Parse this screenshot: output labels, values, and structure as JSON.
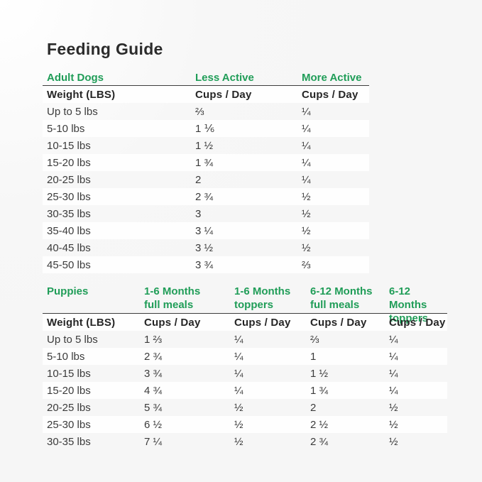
{
  "title": "Feeding Guide",
  "colors": {
    "accent_green": "#209d58",
    "page_bg": "#f6f6f6",
    "stripe_white": "#fefefe",
    "text_dark": "#3b3b3b"
  },
  "adult_dogs": {
    "section_label": "Adult Dogs",
    "activity_headers": [
      "Less Active",
      "More Active"
    ],
    "weight_header": "Weight (LBS)",
    "unit_label": "Cups / Day",
    "rows": [
      {
        "weight": "Up to 5 lbs",
        "values": [
          "⅔",
          "¼"
        ]
      },
      {
        "weight": "5-10 lbs",
        "values": [
          "1 ⅙",
          "¼"
        ]
      },
      {
        "weight": "10-15 lbs",
        "values": [
          "1 ½",
          "¼"
        ]
      },
      {
        "weight": "15-20 lbs",
        "values": [
          "1 ¾",
          "¼"
        ]
      },
      {
        "weight": "20-25 lbs",
        "values": [
          "2",
          "¼"
        ]
      },
      {
        "weight": "25-30 lbs",
        "values": [
          "2 ¾",
          "½"
        ]
      },
      {
        "weight": "30-35 lbs",
        "values": [
          "3",
          "½"
        ]
      },
      {
        "weight": "35-40 lbs",
        "values": [
          "3 ¼",
          "½"
        ]
      },
      {
        "weight": "40-45 lbs",
        "values": [
          "3 ½",
          "½"
        ]
      },
      {
        "weight": "45-50 lbs",
        "values": [
          "3 ¾",
          "⅔"
        ]
      }
    ]
  },
  "puppies": {
    "section_label": "Puppies",
    "age_headers": [
      "1-6 Months\nfull meals",
      "1-6 Months\ntoppers",
      "6-12 Months\nfull meals",
      "6-12 Months\ntoppers"
    ],
    "weight_header": "Weight (LBS)",
    "unit_label": "Cups / Day",
    "rows": [
      {
        "weight": "Up to 5 lbs",
        "values": [
          "1 ⅔",
          "¼",
          "⅔",
          "¼"
        ]
      },
      {
        "weight": "5-10 lbs",
        "values": [
          "2 ¾",
          "¼",
          "1",
          "¼"
        ]
      },
      {
        "weight": "10-15 lbs",
        "values": [
          "3 ¾",
          "¼",
          "1 ½",
          "¼"
        ]
      },
      {
        "weight": "15-20 lbs",
        "values": [
          "4 ¾",
          "¼",
          "1 ¾",
          "¼"
        ]
      },
      {
        "weight": "20-25 lbs",
        "values": [
          "5 ¾",
          "½",
          "2",
          "½"
        ]
      },
      {
        "weight": "25-30 lbs",
        "values": [
          "6 ½",
          "½",
          "2 ½",
          "½"
        ]
      },
      {
        "weight": "30-35 lbs",
        "values": [
          "7 ¼",
          "½",
          "2 ¾",
          "½"
        ]
      }
    ]
  }
}
